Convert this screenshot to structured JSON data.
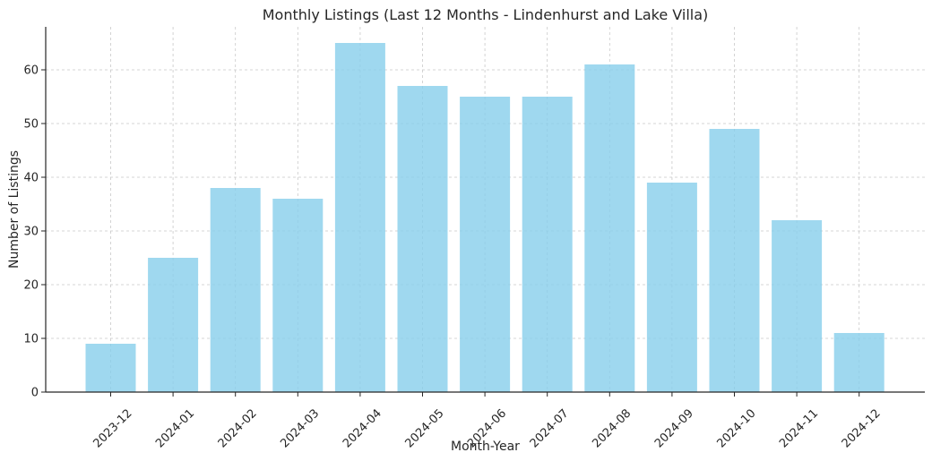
{
  "chart_data": {
    "type": "bar",
    "title": "Monthly Listings (Last 12 Months - Lindenhurst and Lake Villa)",
    "xlabel": "Month-Year",
    "ylabel": "Number of Listings",
    "categories": [
      "2023-12",
      "2024-01",
      "2024-02",
      "2024-03",
      "2024-04",
      "2024-05",
      "2024-06",
      "2024-07",
      "2024-08",
      "2024-09",
      "2024-10",
      "2024-11",
      "2024-12"
    ],
    "values": [
      9,
      25,
      38,
      36,
      65,
      57,
      55,
      55,
      61,
      39,
      49,
      32,
      11
    ],
    "ylim": [
      0,
      68
    ],
    "yticks": [
      0,
      10,
      20,
      30,
      40,
      50,
      60
    ],
    "grid": true,
    "bar_color": "#87ceeb"
  }
}
